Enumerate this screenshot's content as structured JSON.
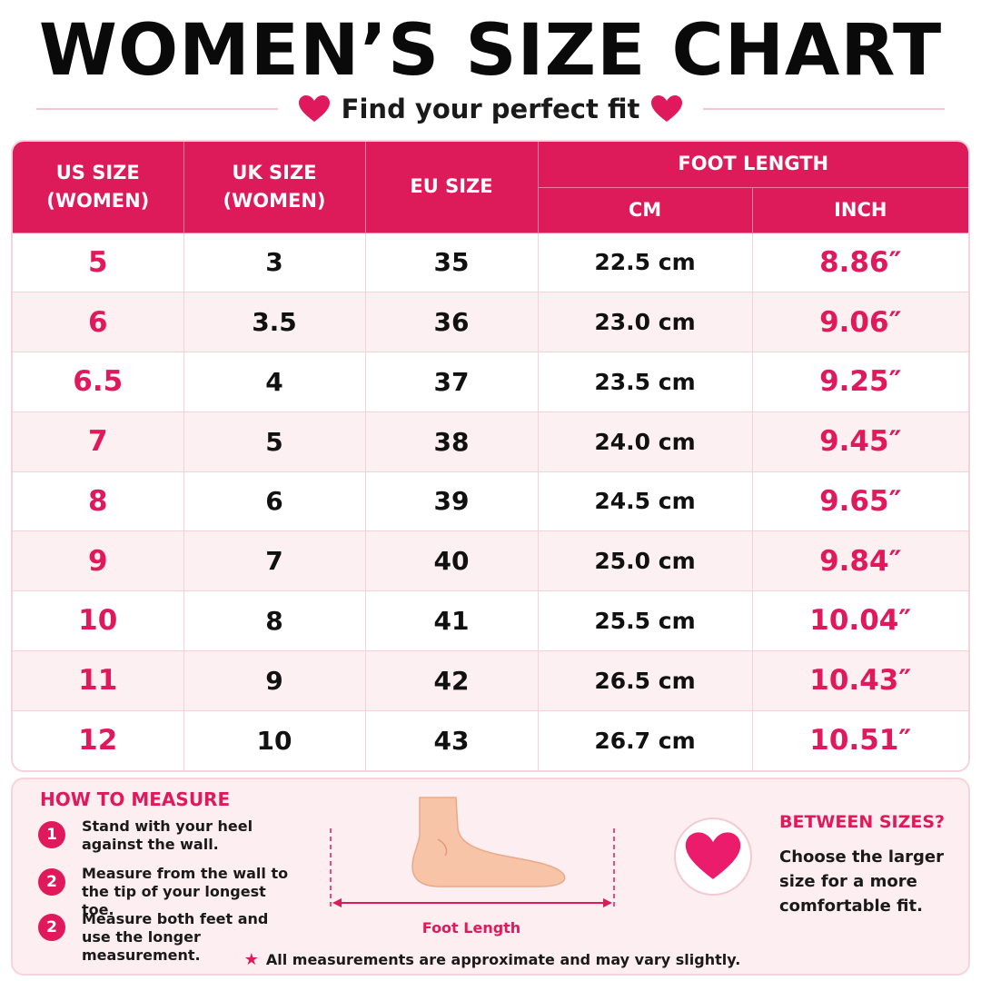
{
  "title": "WOMEN’S SIZE CHART",
  "subtitle": "Find your perfect fit",
  "accent_color": "#e0195c",
  "header": {
    "us": [
      "US SIZE",
      "(WOMEN)"
    ],
    "uk": [
      "UK SIZE",
      "(WOMEN)"
    ],
    "eu": "EU SIZE",
    "foot_length": "FOOT LENGTH",
    "cm": "CM",
    "inch": "INCH"
  },
  "rows": [
    {
      "us": "5",
      "uk": "3",
      "eu": "35",
      "cm": "22.5 cm",
      "inch": "8.86″"
    },
    {
      "us": "6",
      "uk": "3.5",
      "eu": "36",
      "cm": "23.0 cm",
      "inch": "9.06″"
    },
    {
      "us": "6.5",
      "uk": "4",
      "eu": "37",
      "cm": "23.5 cm",
      "inch": "9.25″"
    },
    {
      "us": "7",
      "uk": "5",
      "eu": "38",
      "cm": "24.0 cm",
      "inch": "9.45″"
    },
    {
      "us": "8",
      "uk": "6",
      "eu": "39",
      "cm": "24.5 cm",
      "inch": "9.65″"
    },
    {
      "us": "9",
      "uk": "7",
      "eu": "40",
      "cm": "25.0 cm",
      "inch": "9.84″"
    },
    {
      "us": "10",
      "uk": "8",
      "eu": "41",
      "cm": "25.5 cm",
      "inch": "10.04″"
    },
    {
      "us": "11",
      "uk": "9",
      "eu": "42",
      "cm": "26.5 cm",
      "inch": "10.43″"
    },
    {
      "us": "12",
      "uk": "10",
      "eu": "43",
      "cm": "26.7 cm",
      "inch": "10.51″"
    }
  ],
  "how_to_measure": {
    "title": "HOW TO MEASURE",
    "steps": [
      {
        "num": "1",
        "text": "Stand with your heel against the wall."
      },
      {
        "num": "2",
        "text": "Measure from the wall to the tip of your longest toe."
      },
      {
        "num": "2",
        "text": "Measure both feet and use the longer measurement."
      }
    ]
  },
  "foot_label": "Foot Length",
  "between_sizes": {
    "title": "BETWEEN SIZES?",
    "text": "Choose the larger size for a more comfortable fit."
  },
  "footnote": "All measurements are approximate and may vary slightly."
}
